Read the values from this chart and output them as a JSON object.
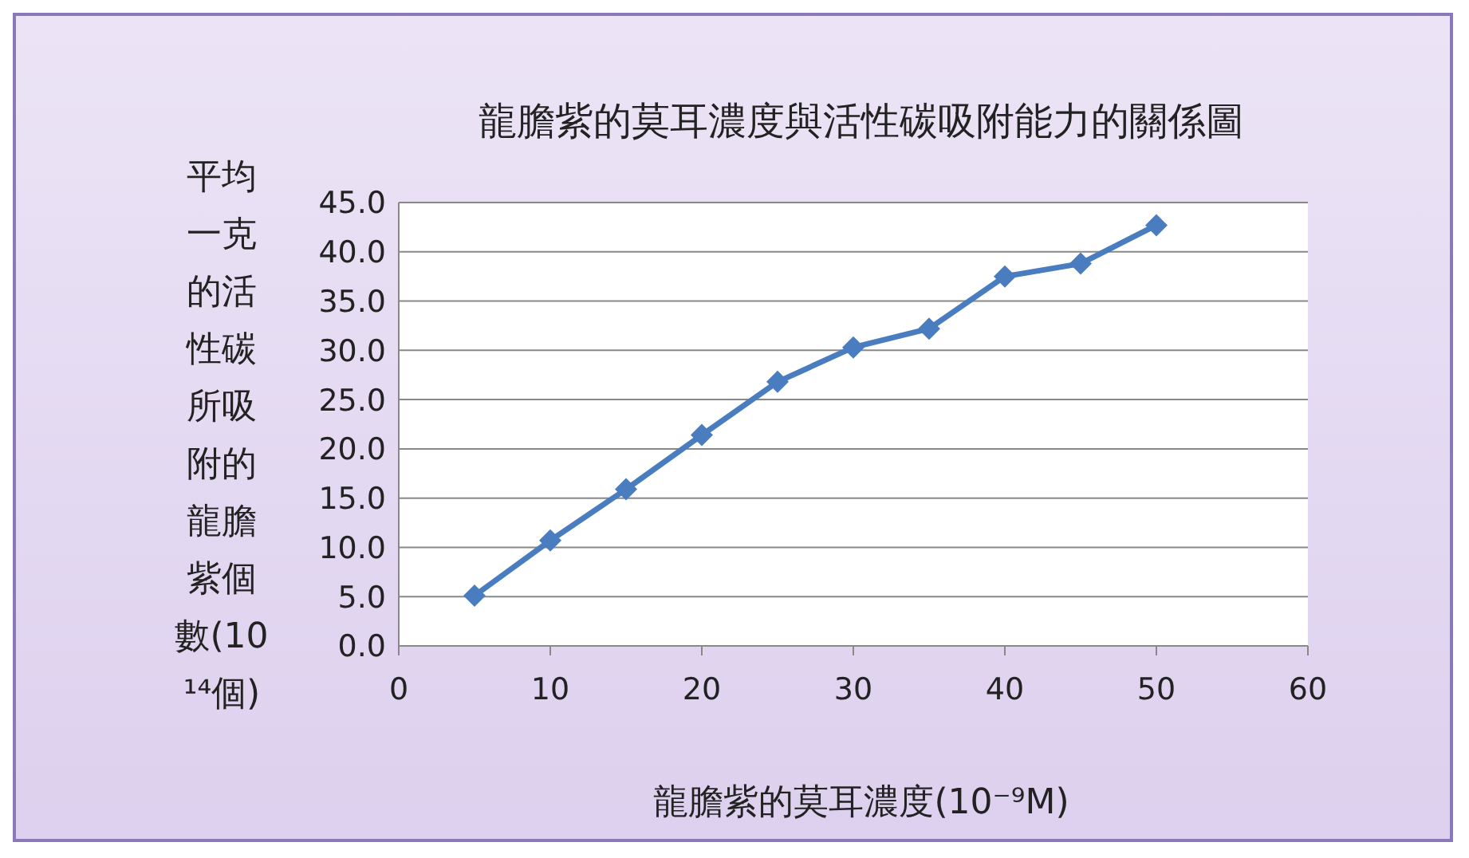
{
  "chart_data": {
    "type": "line",
    "title": "龍膽紫的莫耳濃度與活性碳吸附能力的關係圖",
    "xlabel": "龍膽紫的莫耳濃度(10⁻⁹M)",
    "ylabel": "平均一克的活性碳所吸附的龍膽紫個數(10¹⁴個)",
    "x": [
      5,
      10,
      15,
      20,
      25,
      30,
      35,
      40,
      45,
      50
    ],
    "series": [
      {
        "color": "#4a7cc0",
        "values": [
          5.1,
          10.7,
          15.9,
          21.4,
          26.8,
          30.3,
          32.2,
          37.5,
          38.8,
          42.7
        ]
      }
    ],
    "xlim": [
      0,
      60
    ],
    "xticks": [
      0,
      10,
      20,
      30,
      40,
      50,
      60
    ],
    "ylim": [
      0,
      45
    ],
    "yticks": [
      {
        "value": 0,
        "label": "0.0"
      },
      {
        "value": 5,
        "label": "5.0"
      },
      {
        "value": 10,
        "label": "10.0"
      },
      {
        "value": 15,
        "label": "15.0"
      },
      {
        "value": 20,
        "label": "20.0"
      },
      {
        "value": 25,
        "label": "25.0"
      },
      {
        "value": 30,
        "label": "30.0"
      },
      {
        "value": 35,
        "label": "35.0"
      },
      {
        "value": 40,
        "label": "40.0"
      },
      {
        "value": 45,
        "label": "45.0"
      }
    ],
    "grid": "y",
    "legend": false,
    "marker": "diamond",
    "line_style": "solid"
  }
}
